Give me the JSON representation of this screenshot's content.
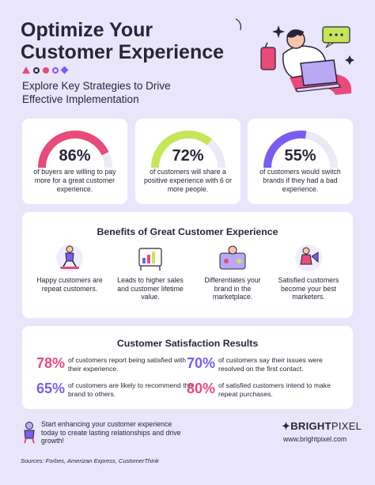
{
  "header": {
    "title": "Optimize Your Customer Experience",
    "subtitle": "Explore Key Strategies to Drive Effective Implementation",
    "illustration_icon": "person-with-laptop-illustration"
  },
  "stats": [
    {
      "value": "86%",
      "fraction": 0.86,
      "color": "#e74a7b",
      "desc": "of buyers are willing to pay more for a great customer experience."
    },
    {
      "value": "72%",
      "fraction": 0.72,
      "color": "#c6e65a",
      "desc": "of customers will share a positive experience with 6 or more people."
    },
    {
      "value": "55%",
      "fraction": 0.55,
      "color": "#7a5cf0",
      "desc": "of customers would switch brands if they had a bad experience."
    }
  ],
  "benefits": {
    "title": "Benefits of Great Customer Experience",
    "items": [
      {
        "icon": "skateboarder-icon",
        "label": "Happy customers are repeat customers."
      },
      {
        "icon": "sales-chart-icon",
        "label": "Leads to higher sales and customer lifetime value."
      },
      {
        "icon": "brand-differentiation-icon",
        "label": "Differentiates your brand in the marketplace."
      },
      {
        "icon": "marketer-megaphone-icon",
        "label": "Satisfied customers become your best marketers."
      }
    ]
  },
  "results": {
    "title": "Customer Satisfaction Results",
    "items": [
      {
        "value": "78%",
        "color": "#e74a7b",
        "text": "of customers report being satisfied with their experience."
      },
      {
        "value": "70%",
        "color": "#7a5cf0",
        "text": "of customers say their issues were resolved on the first contact."
      },
      {
        "value": "65%",
        "color": "#7a5cf0",
        "text": "of customers are likely to recommend the brand to others."
      },
      {
        "value": "80%",
        "color": "#e74a7b",
        "text": "of satisfied customers intend to make repeat purchases."
      }
    ]
  },
  "footer": {
    "text": "Start enhancing your customer experience today to create lasting relationships and drive growth!",
    "brand_bold": "BRIGHT",
    "brand_light": "PIXEL",
    "url": "www.brightpixel.com",
    "sources": "Sources: Forbes, Amerizan Express, CustomerThink"
  },
  "colors": {
    "background": "#e9e6fb",
    "pink": "#e74a7b",
    "lime": "#c6e65a",
    "purple": "#7a5cf0",
    "dark": "#2b2438"
  }
}
